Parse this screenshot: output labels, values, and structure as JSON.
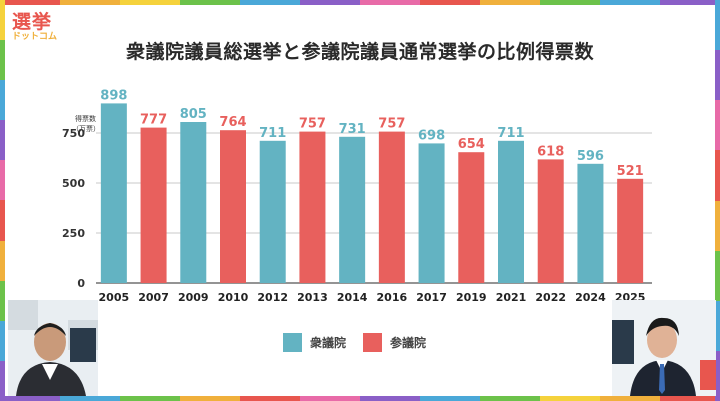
{
  "brand": {
    "logo_main": "選挙",
    "logo_sub": "ドットコム",
    "colors": {
      "red": "#e8564e",
      "orange": "#f0b03c"
    }
  },
  "frame": {
    "colors": [
      "#e8564e",
      "#f0b03c",
      "#f5d23c",
      "#6cc24a",
      "#4aa8d8",
      "#8a5fc7",
      "#e86ba8",
      "#e8564e",
      "#f0b03c",
      "#6cc24a",
      "#4aa8d8",
      "#8a5fc7"
    ]
  },
  "chart_data": {
    "type": "bar",
    "title": "衆議院議員総選挙と参議院議員通常選挙の比例得票数",
    "ylabel_lines": [
      "得票数",
      "（万票）"
    ],
    "ylim": [
      0,
      900
    ],
    "yticks": [
      0,
      250,
      500,
      750
    ],
    "grid": true,
    "categories": [
      "2005",
      "2007",
      "2009",
      "2010",
      "2012",
      "2013",
      "2014",
      "2016",
      "2017",
      "2019",
      "2021",
      "2022",
      "2024",
      "2025"
    ],
    "values": [
      898,
      777,
      805,
      764,
      711,
      757,
      731,
      757,
      698,
      654,
      711,
      618,
      596,
      521
    ],
    "bar_series": [
      "衆議院",
      "参議院",
      "衆議院",
      "参議院",
      "衆議院",
      "参議院",
      "衆議院",
      "参議院",
      "衆議院",
      "参議院",
      "衆議院",
      "参議院",
      "衆議院",
      "参議院"
    ],
    "series": [
      {
        "name": "衆議院",
        "color": "#63b3c2"
      },
      {
        "name": "参議院",
        "color": "#e8605d"
      }
    ],
    "legend_position": "bottom"
  },
  "presenters": {
    "left": {
      "icon": "presenter-avatar-icon"
    },
    "right": {
      "icon": "presenter-avatar-icon"
    }
  }
}
